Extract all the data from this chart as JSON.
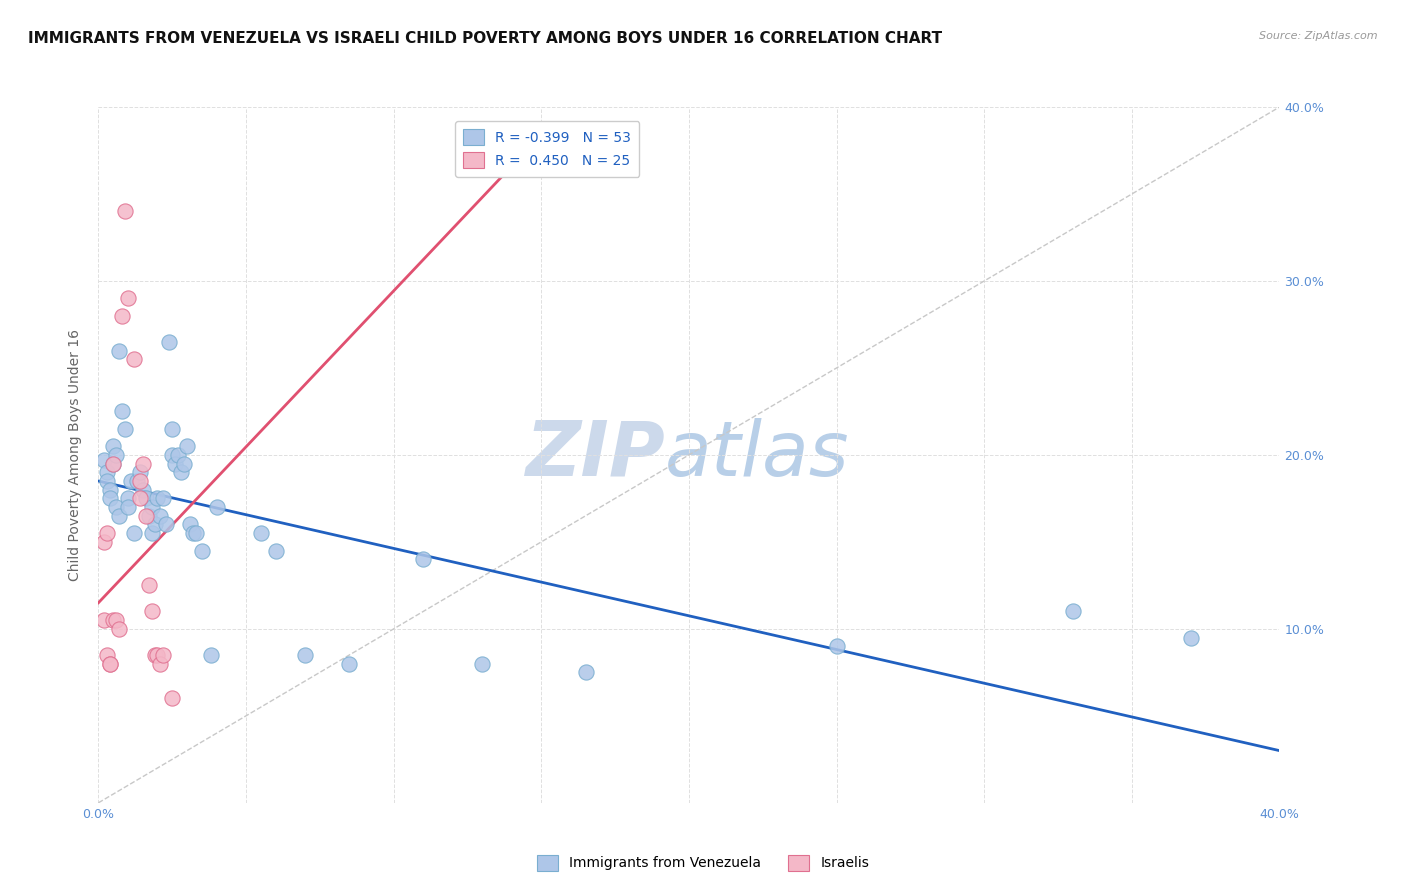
{
  "title": "IMMIGRANTS FROM VENEZUELA VS ISRAELI CHILD POVERTY AMONG BOYS UNDER 16 CORRELATION CHART",
  "source": "Source: ZipAtlas.com",
  "ylabel": "Child Poverty Among Boys Under 16",
  "xlim": [
    0.0,
    0.4
  ],
  "ylim": [
    0.0,
    0.4
  ],
  "xticks": [
    0.0,
    0.05,
    0.1,
    0.15,
    0.2,
    0.25,
    0.3,
    0.35,
    0.4
  ],
  "yticks": [
    0.0,
    0.1,
    0.2,
    0.3,
    0.4
  ],
  "watermark_zip": "ZIP",
  "watermark_atlas": "atlas",
  "legend_label_blue": "R = -0.399   N = 53",
  "legend_label_pink": "R =  0.450   N = 25",
  "blue_scatter": [
    [
      0.002,
      0.197
    ],
    [
      0.003,
      0.19
    ],
    [
      0.003,
      0.185
    ],
    [
      0.004,
      0.18
    ],
    [
      0.004,
      0.175
    ],
    [
      0.005,
      0.205
    ],
    [
      0.005,
      0.195
    ],
    [
      0.006,
      0.17
    ],
    [
      0.006,
      0.2
    ],
    [
      0.007,
      0.165
    ],
    [
      0.007,
      0.26
    ],
    [
      0.008,
      0.225
    ],
    [
      0.009,
      0.215
    ],
    [
      0.01,
      0.175
    ],
    [
      0.01,
      0.17
    ],
    [
      0.011,
      0.185
    ],
    [
      0.012,
      0.155
    ],
    [
      0.013,
      0.185
    ],
    [
      0.014,
      0.19
    ],
    [
      0.015,
      0.18
    ],
    [
      0.016,
      0.175
    ],
    [
      0.017,
      0.165
    ],
    [
      0.018,
      0.17
    ],
    [
      0.018,
      0.155
    ],
    [
      0.019,
      0.16
    ],
    [
      0.02,
      0.175
    ],
    [
      0.021,
      0.165
    ],
    [
      0.022,
      0.175
    ],
    [
      0.023,
      0.16
    ],
    [
      0.024,
      0.265
    ],
    [
      0.025,
      0.215
    ],
    [
      0.025,
      0.2
    ],
    [
      0.026,
      0.195
    ],
    [
      0.027,
      0.2
    ],
    [
      0.028,
      0.19
    ],
    [
      0.029,
      0.195
    ],
    [
      0.03,
      0.205
    ],
    [
      0.031,
      0.16
    ],
    [
      0.032,
      0.155
    ],
    [
      0.033,
      0.155
    ],
    [
      0.035,
      0.145
    ],
    [
      0.038,
      0.085
    ],
    [
      0.04,
      0.17
    ],
    [
      0.055,
      0.155
    ],
    [
      0.06,
      0.145
    ],
    [
      0.07,
      0.085
    ],
    [
      0.085,
      0.08
    ],
    [
      0.11,
      0.14
    ],
    [
      0.13,
      0.08
    ],
    [
      0.165,
      0.075
    ],
    [
      0.25,
      0.09
    ],
    [
      0.33,
      0.11
    ],
    [
      0.37,
      0.095
    ]
  ],
  "pink_scatter": [
    [
      0.002,
      0.15
    ],
    [
      0.002,
      0.105
    ],
    [
      0.003,
      0.155
    ],
    [
      0.003,
      0.085
    ],
    [
      0.004,
      0.08
    ],
    [
      0.004,
      0.08
    ],
    [
      0.005,
      0.195
    ],
    [
      0.005,
      0.105
    ],
    [
      0.006,
      0.105
    ],
    [
      0.007,
      0.1
    ],
    [
      0.008,
      0.28
    ],
    [
      0.009,
      0.34
    ],
    [
      0.01,
      0.29
    ],
    [
      0.012,
      0.255
    ],
    [
      0.014,
      0.175
    ],
    [
      0.014,
      0.185
    ],
    [
      0.015,
      0.195
    ],
    [
      0.016,
      0.165
    ],
    [
      0.017,
      0.125
    ],
    [
      0.018,
      0.11
    ],
    [
      0.019,
      0.085
    ],
    [
      0.02,
      0.085
    ],
    [
      0.021,
      0.08
    ],
    [
      0.022,
      0.085
    ],
    [
      0.025,
      0.06
    ]
  ],
  "blue_line_x": [
    0.0,
    0.4
  ],
  "blue_line_y": [
    0.185,
    0.03
  ],
  "pink_line_x": [
    0.0,
    0.145
  ],
  "pink_line_y": [
    0.115,
    0.375
  ],
  "gray_line_x": [
    0.0,
    0.4
  ],
  "gray_line_y": [
    0.0,
    0.4
  ],
  "blue_dot_color": "#aec6e8",
  "blue_edge_color": "#7aaed0",
  "pink_dot_color": "#f4b8c8",
  "pink_edge_color": "#e07090",
  "blue_line_color": "#2060c0",
  "pink_line_color": "#e05070",
  "gray_line_color": "#c8c8c8",
  "tick_color": "#5b8fd4",
  "ylabel_color": "#666666",
  "title_color": "#111111",
  "source_color": "#999999",
  "grid_color": "#e0e0e0",
  "watermark_zip_color": "#ccd9eb",
  "watermark_atlas_color": "#b8cfe8",
  "background_color": "#ffffff",
  "title_fontsize": 11,
  "tick_fontsize": 9,
  "ylabel_fontsize": 10,
  "watermark_fontsize": 55,
  "legend_fontsize": 10
}
